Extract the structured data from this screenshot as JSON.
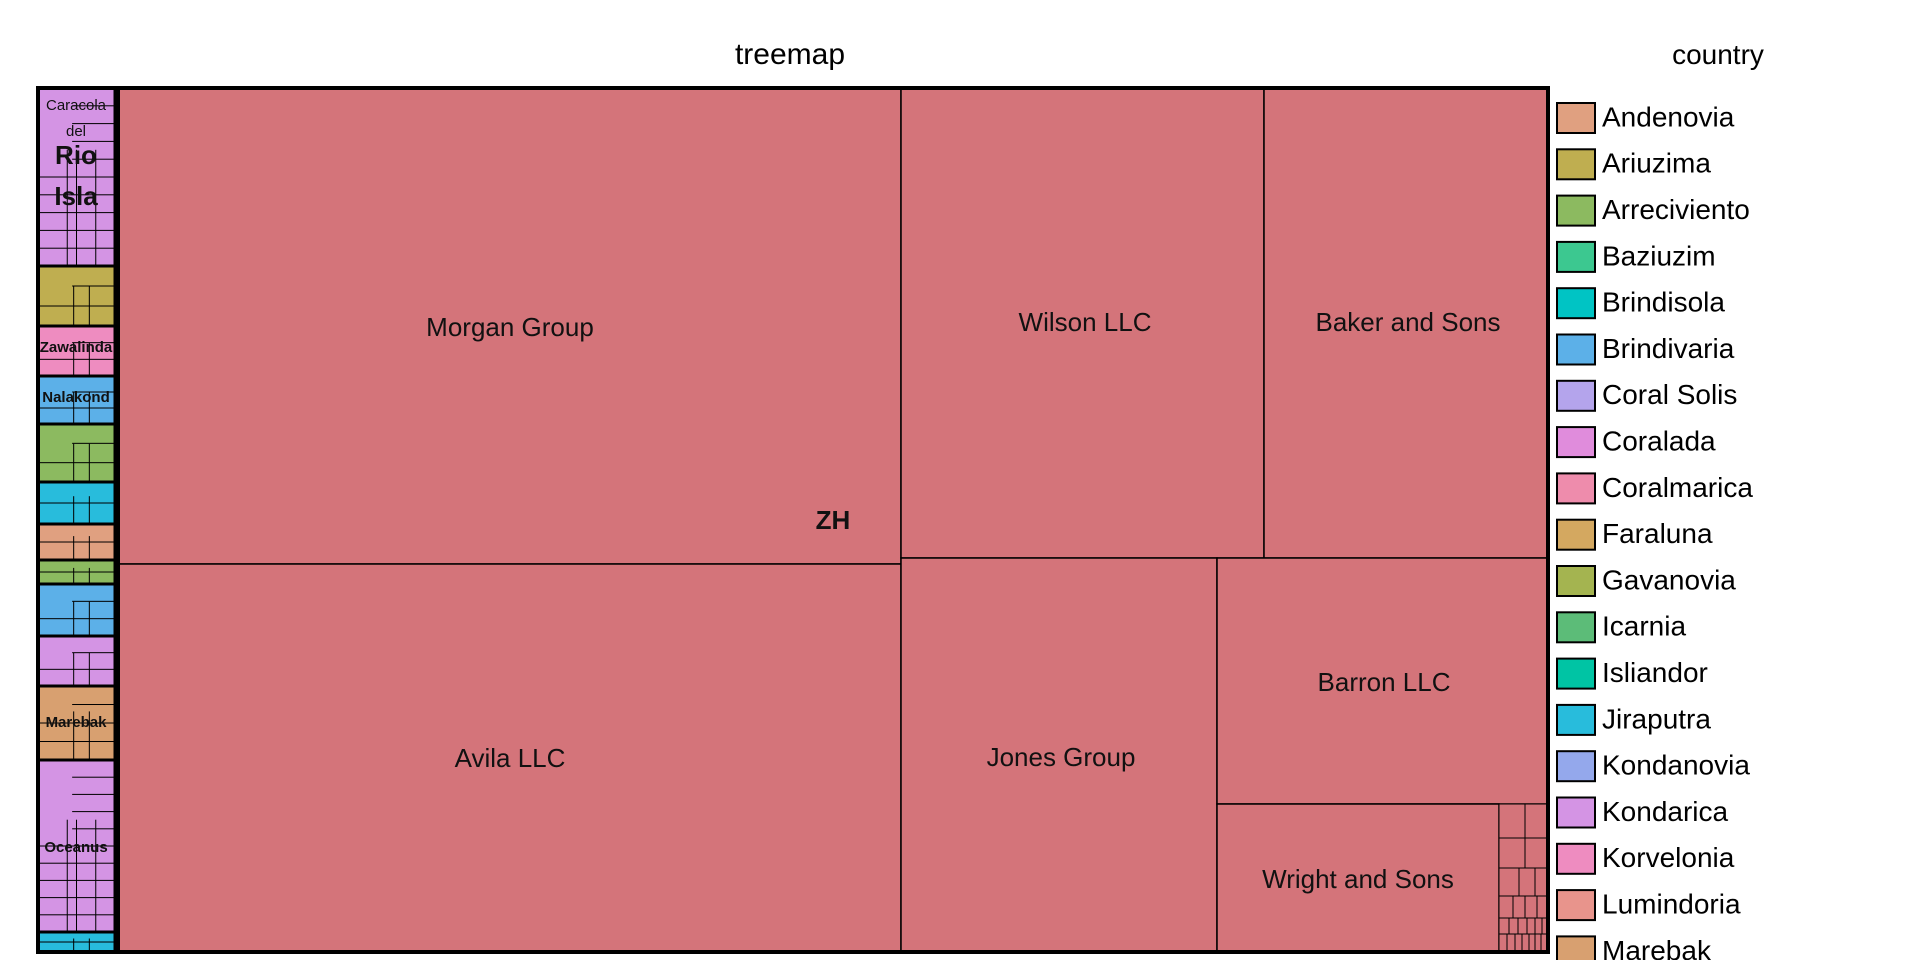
{
  "chart_data": {
    "type": "treemap",
    "title": "treemap",
    "legend_title": "country",
    "legend_placement": "right",
    "colors": {
      "Andenovia": "#e0a080",
      "Ariuzima": "#bfae50",
      "Arreciviento": "#8cba60",
      "Baziuzim": "#3cc890",
      "Brindisola": "#00c4c4",
      "Brindivaria": "#5cb0e8",
      "Coral Solis": "#b4a4ec",
      "Coralada": "#e08cdc",
      "Coralmarica": "#ee8cac",
      "Faraluna": "#d4a860",
      "Gavanovia": "#a4b450",
      "Icarnia": "#5cbc78",
      "Isliandor": "#00c4a4",
      "Jiraputra": "#28bcdc",
      "Kondanovia": "#94a8ec",
      "Kondarica": "#d494e4",
      "Korvelonia": "#ee8cc0",
      "Lumindoria": "#e8948c",
      "Marebak": "#d8a070",
      "ZH": "#d4747a"
    },
    "legend": [
      "Andenovia",
      "Ariuzima",
      "Arreciviento",
      "Baziuzim",
      "Brindisola",
      "Brindivaria",
      "Coral Solis",
      "Coralada",
      "Coralmarica",
      "Faraluna",
      "Gavanovia",
      "Icarnia",
      "Isliandor",
      "Jiraputra",
      "Kondanovia",
      "Kondarica",
      "Korvelonia",
      "Lumindoria",
      "Marebak"
    ],
    "main_group": {
      "name": "ZH",
      "leaves": [
        "Morgan Group",
        "Avila LLC",
        "Wilson LLC",
        "Baker and Sons",
        "Jones Group",
        "Barron LLC",
        "Wright and Sons"
      ]
    },
    "side_labels": [
      "Caracola",
      "del",
      "Rio",
      "Isla",
      "Zawalinda",
      "Nalakond",
      "Marebak",
      "Oceanus"
    ]
  }
}
